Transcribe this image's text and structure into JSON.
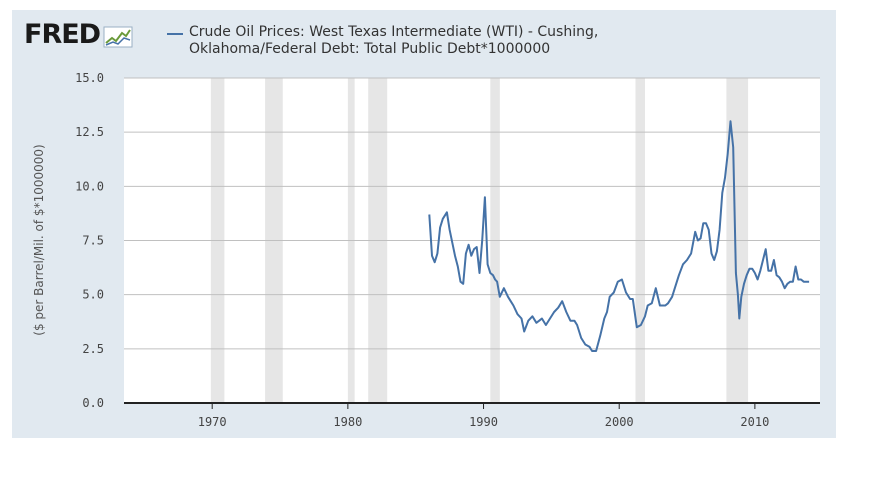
{
  "header": {
    "logo_text": "FRED",
    "logo_icon": "fred-chart-icon"
  },
  "chart_data": {
    "type": "line",
    "title": "",
    "xlabel": "",
    "ylabel": "($ per Barrel/Mil. of $*1000000)",
    "xlim": [
      1963.5,
      2014.8
    ],
    "ylim": [
      0,
      15
    ],
    "x_ticks": [
      1970,
      1980,
      1990,
      2000,
      2010
    ],
    "x_tick_labels": [
      "1970",
      "1980",
      "1990",
      "2000",
      "2010"
    ],
    "y_ticks": [
      0,
      2.5,
      5,
      7.5,
      10,
      12.5,
      15
    ],
    "y_tick_labels": [
      "0.0",
      "2.5",
      "5.0",
      "7.5",
      "10.0",
      "12.5",
      "15.0"
    ],
    "grid": "horizontal",
    "legend": "top",
    "recessions": [
      [
        1969.9,
        1970.9
      ],
      [
        1973.9,
        1975.2
      ],
      [
        1980.0,
        1980.5
      ],
      [
        1981.5,
        1982.9
      ],
      [
        1990.5,
        1991.2
      ],
      [
        2001.2,
        2001.9
      ],
      [
        2007.9,
        2009.5
      ]
    ],
    "series": [
      {
        "name": "Crude Oil Prices: West Texas Intermediate (WTI) - Cushing, Oklahoma/Federal Debt: Total Public Debt*1000000",
        "color": "#4572a7",
        "x": [
          1986.0,
          1986.2,
          1986.4,
          1986.6,
          1986.8,
          1987.0,
          1987.3,
          1987.5,
          1987.7,
          1987.9,
          1988.1,
          1988.3,
          1988.5,
          1988.7,
          1988.9,
          1989.1,
          1989.3,
          1989.5,
          1989.7,
          1989.9,
          1990.1,
          1990.3,
          1990.5,
          1990.7,
          1990.85,
          1991.0,
          1991.2,
          1991.5,
          1991.8,
          1992.0,
          1992.2,
          1992.5,
          1992.8,
          1993.0,
          1993.3,
          1993.6,
          1993.9,
          1994.1,
          1994.3,
          1994.6,
          1994.9,
          1995.2,
          1995.5,
          1995.8,
          1996.1,
          1996.4,
          1996.7,
          1996.9,
          1997.2,
          1997.5,
          1997.8,
          1998.0,
          1998.3,
          1998.6,
          1998.9,
          1999.1,
          1999.3,
          1999.6,
          1999.9,
          2000.2,
          2000.5,
          2000.8,
          2001.0,
          2001.3,
          2001.6,
          2001.9,
          2002.1,
          2002.4,
          2002.7,
          2003.0,
          2003.2,
          2003.4,
          2003.6,
          2003.9,
          2004.1,
          2004.4,
          2004.7,
          2005.0,
          2005.3,
          2005.6,
          2005.8,
          2006.0,
          2006.2,
          2006.4,
          2006.6,
          2006.8,
          2007.0,
          2007.2,
          2007.4,
          2007.6,
          2007.8,
          2008.0,
          2008.2,
          2008.4,
          2008.6,
          2008.75,
          2008.85,
          2009.0,
          2009.2,
          2009.4,
          2009.6,
          2009.8,
          2010.0,
          2010.2,
          2010.4,
          2010.6,
          2010.8,
          2011.0,
          2011.2,
          2011.4,
          2011.6,
          2011.8,
          2012.0,
          2012.2,
          2012.4,
          2012.6,
          2012.8,
          2013.0,
          2013.2,
          2013.4,
          2013.6,
          2013.8,
          2014.0
        ],
        "values": [
          8.7,
          6.8,
          6.5,
          6.9,
          8.1,
          8.5,
          8.8,
          8.0,
          7.4,
          6.8,
          6.3,
          5.6,
          5.5,
          6.9,
          7.3,
          6.8,
          7.1,
          7.2,
          6.0,
          7.5,
          9.5,
          6.4,
          6.0,
          5.9,
          5.7,
          5.6,
          4.9,
          5.3,
          4.9,
          4.7,
          4.5,
          4.1,
          3.9,
          3.3,
          3.8,
          4.0,
          3.7,
          3.8,
          3.9,
          3.6,
          3.9,
          4.2,
          4.4,
          4.7,
          4.2,
          3.8,
          3.8,
          3.6,
          3.0,
          2.7,
          2.6,
          2.4,
          2.4,
          3.1,
          3.9,
          4.2,
          4.9,
          5.1,
          5.6,
          5.7,
          5.1,
          4.8,
          4.8,
          3.5,
          3.6,
          4.0,
          4.5,
          4.6,
          5.3,
          4.5,
          4.5,
          4.5,
          4.6,
          4.9,
          5.3,
          5.9,
          6.4,
          6.6,
          6.9,
          7.9,
          7.5,
          7.6,
          8.3,
          8.3,
          8.0,
          6.9,
          6.6,
          7.0,
          8.0,
          9.7,
          10.4,
          11.5,
          13.0,
          11.8,
          6.0,
          5.0,
          3.9,
          4.9,
          5.5,
          5.9,
          6.2,
          6.2,
          6.0,
          5.7,
          6.1,
          6.6,
          7.1,
          6.1,
          6.1,
          6.6,
          5.9,
          5.8,
          5.6,
          5.3,
          5.5,
          5.6,
          5.6,
          6.3,
          5.7,
          5.7,
          5.6,
          5.6,
          5.6
        ]
      }
    ]
  }
}
